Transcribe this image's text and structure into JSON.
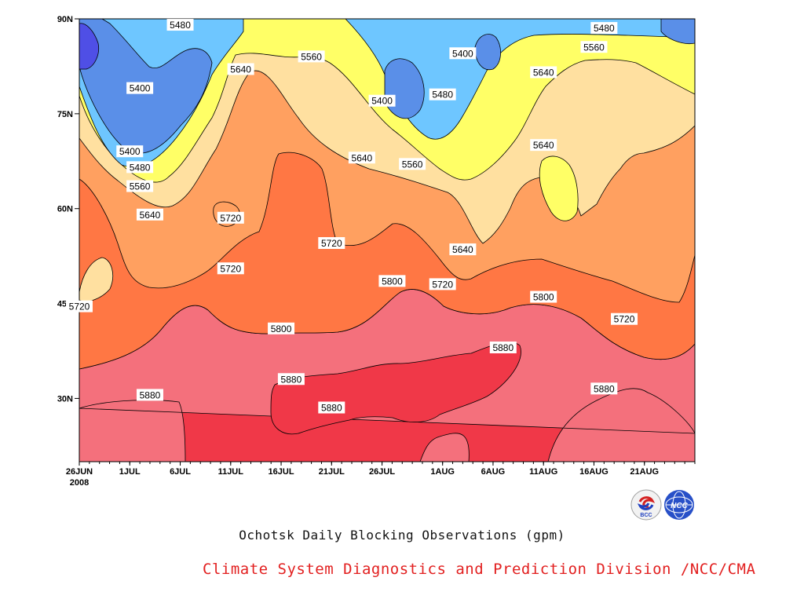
{
  "title": "Ochotsk Daily Blocking Observations (gpm)",
  "credit": "Climate System Diagnostics and Prediction Division /NCC/CMA",
  "logos": {
    "left": "BCC",
    "right": "NCC"
  },
  "colors": {
    "lt5400": "#4f4fe6",
    "b5400_5480": "#5a8fe8",
    "b5480_5560": "#6ec6ff",
    "b5560_5640": "#ffff66",
    "b5640_5720": "#ffe0a0",
    "b5720_5800": "#ffa060",
    "b5800_5880": "#ff7744",
    "b5880_5960": "#f4707c",
    "gt5960": "#f03848",
    "credit": "#e22020"
  },
  "chart_data": {
    "type": "heatmap",
    "title": "Ochotsk Daily Blocking Observations (gpm)",
    "x_ticks": [
      "26JUN",
      "1JUL",
      "6JUL",
      "11JUL",
      "16JUL",
      "21JUL",
      "26JUL",
      "1AUG",
      "6AUG",
      "11AUG",
      "16AUG",
      "21AUG"
    ],
    "x_year_label": "2008",
    "y_ticks": [
      "30N",
      "45N",
      "60N",
      "75N",
      "90N"
    ],
    "y_tick_values": [
      30,
      45,
      60,
      75,
      90
    ],
    "ylim": [
      20,
      90
    ],
    "contour_levels": [
      5400,
      5480,
      5560,
      5640,
      5720,
      5800,
      5880
    ],
    "contour_labels": [
      {
        "text": "5480",
        "date": "6JUL",
        "lat": 89
      },
      {
        "text": "5400",
        "date": "2JUL",
        "lat": 79
      },
      {
        "text": "5400",
        "date": "1JUL",
        "lat": 69
      },
      {
        "text": "5480",
        "date": "2JUL",
        "lat": 66.5
      },
      {
        "text": "5560",
        "date": "2JUL",
        "lat": 63.5
      },
      {
        "text": "5640",
        "date": "3JUL",
        "lat": 59
      },
      {
        "text": "5640",
        "date": "12JUL",
        "lat": 82
      },
      {
        "text": "5560",
        "date": "19JUL",
        "lat": 84
      },
      {
        "text": "5720",
        "date": "11JUL",
        "lat": 58.5
      },
      {
        "text": "5720",
        "date": "11JUL",
        "lat": 50.5
      },
      {
        "text": "5720",
        "date": "26JUN",
        "lat": 44.5
      },
      {
        "text": "5720",
        "date": "21JUL",
        "lat": 54.5
      },
      {
        "text": "5640",
        "date": "24JUL",
        "lat": 68
      },
      {
        "text": "5400",
        "date": "26JUL",
        "lat": 77
      },
      {
        "text": "5560",
        "date": "29JUL",
        "lat": 67
      },
      {
        "text": "5480",
        "date": "1AUG",
        "lat": 78
      },
      {
        "text": "5400",
        "date": "3AUG",
        "lat": 84.5
      },
      {
        "text": "5640",
        "date": "3AUG",
        "lat": 53.5
      },
      {
        "text": "5720",
        "date": "1AUG",
        "lat": 48
      },
      {
        "text": "5800",
        "date": "27JUL",
        "lat": 48.5
      },
      {
        "text": "5800",
        "date": "16JUL",
        "lat": 41
      },
      {
        "text": "5880",
        "date": "7AUG",
        "lat": 38
      },
      {
        "text": "5800",
        "date": "11AUG",
        "lat": 46
      },
      {
        "text": "5720",
        "date": "19AUG",
        "lat": 42.5
      },
      {
        "text": "5640",
        "date": "11AUG",
        "lat": 70
      },
      {
        "text": "5640",
        "date": "11AUG",
        "lat": 81.5
      },
      {
        "text": "5560",
        "date": "16AUG",
        "lat": 85.5
      },
      {
        "text": "5480",
        "date": "17AUG",
        "lat": 88.5
      },
      {
        "text": "5880",
        "date": "17AUG",
        "lat": 31.5
      },
      {
        "text": "5880",
        "date": "3JUL",
        "lat": 30.5
      },
      {
        "text": "5880",
        "date": "17JUL",
        "lat": 33
      },
      {
        "text": "5880",
        "date": "21JUL",
        "lat": 28.5
      }
    ]
  }
}
